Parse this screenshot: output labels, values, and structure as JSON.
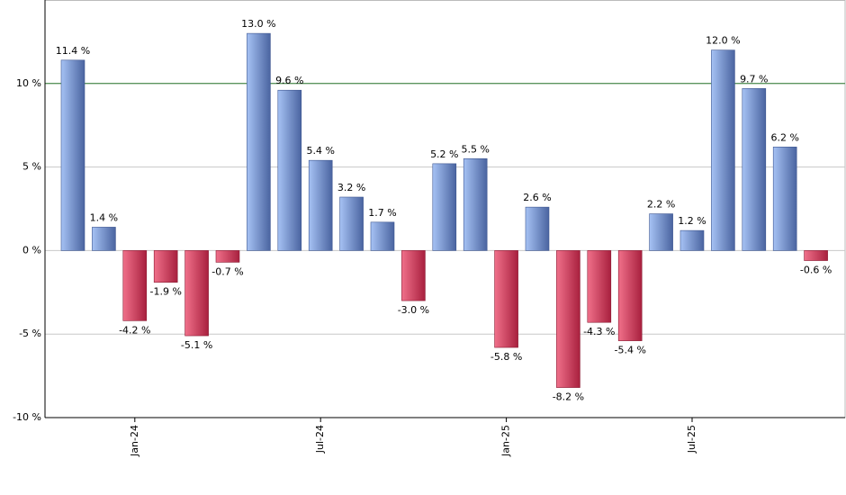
{
  "chart_data": {
    "type": "bar",
    "categories": [
      null,
      null,
      "Jan-24",
      null,
      null,
      null,
      null,
      null,
      "Jul-24",
      null,
      null,
      null,
      null,
      null,
      "Jan-25",
      null,
      null,
      null,
      null,
      null,
      "Jul-25",
      null,
      null,
      null,
      null
    ],
    "values": [
      11.4,
      1.4,
      -4.2,
      -1.9,
      -5.1,
      -0.7,
      13.0,
      9.6,
      5.4,
      3.2,
      1.7,
      -3.0,
      5.2,
      5.5,
      -5.8,
      2.6,
      -8.2,
      -4.3,
      -5.4,
      2.2,
      1.2,
      12.0,
      9.7,
      6.2,
      -0.6
    ],
    "value_labels": [
      "11.4 %",
      "1.4 %",
      "-4.2 %",
      "-1.9 %",
      "-5.1 %",
      "-0.7 %",
      "13.0 %",
      "9.6 %",
      "5.4 %",
      "3.2 %",
      "1.7 %",
      "-3.0 %",
      "5.2 %",
      "5.5 %",
      "-5.8 %",
      "2.6 %",
      "-8.2 %",
      "-4.3 %",
      "-5.4 %",
      "2.2 %",
      "1.2 %",
      "12.0 %",
      "9.7 %",
      "6.2 %",
      "-0.6 %"
    ],
    "positive_color": [
      "#a6c2f4",
      "#4a64a0"
    ],
    "negative_color": [
      "#f0708a",
      "#a8203e"
    ],
    "ylim": [
      -10,
      15
    ],
    "yticks": [
      {
        "value": -10,
        "label": "-10 %"
      },
      {
        "value": -5,
        "label": "-5 %"
      },
      {
        "value": 0,
        "label": "0 %"
      },
      {
        "value": 5,
        "label": "5 %"
      },
      {
        "value": 10,
        "label": "10 %"
      }
    ],
    "grid": true,
    "reference_line": 10,
    "reference_color": "#2e7d32"
  }
}
